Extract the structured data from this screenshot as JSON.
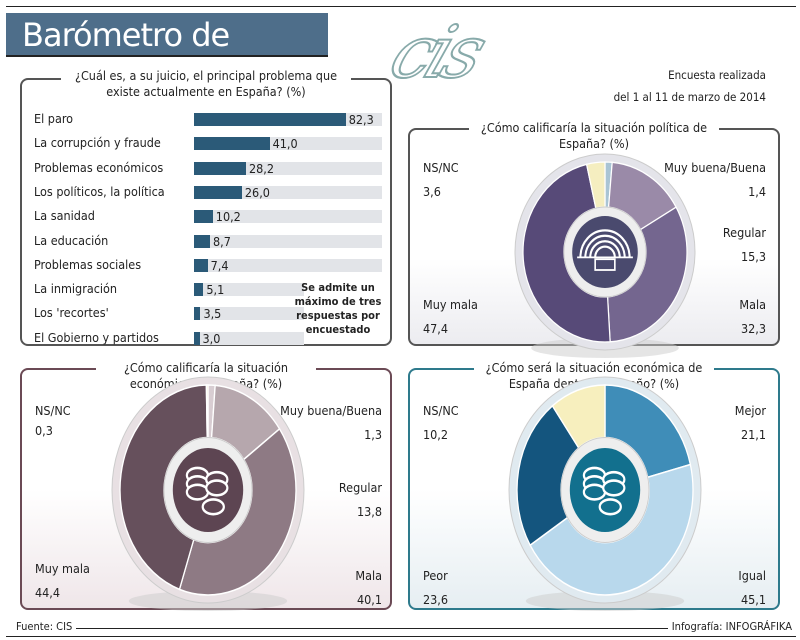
{
  "header": {
    "title": "Barómetro de marzo",
    "logo_text": "cis",
    "survey_line1": "Encuesta realizada",
    "survey_line2": "del 1 al 11 de marzo de 2014"
  },
  "footer": {
    "source": "Fuente: CIS",
    "credit": "Infografía: INFOGRÁFIKA"
  },
  "chart_data": [
    {
      "type": "bar",
      "orientation": "horizontal",
      "title": "¿Cuál es, a su juicio, el principal problema que existe actualmente en España? (%)",
      "categories": [
        "El paro",
        "La corrupción y fraude",
        "Problemas económicos",
        "Los políticos, la política",
        "La sanidad",
        "La educación",
        "Problemas sociales",
        "La inmigración",
        "Los 'recortes'",
        "El Gobierno y partidos"
      ],
      "values": [
        82.3,
        41.0,
        28.2,
        26.0,
        10.2,
        8.7,
        7.4,
        5.1,
        3.5,
        3.0
      ],
      "value_labels": [
        "82,3",
        "41,0",
        "28,2",
        "26,0",
        "10,2",
        "8,7",
        "7,4",
        "5,1",
        "3,5",
        "3,0"
      ],
      "note": "Se admite un máximo de tres respuestas por encuestado",
      "color": "#2b5a78"
    },
    {
      "type": "pie",
      "title": "¿Cómo calificaría la situación política de España? (%)",
      "categories": [
        "Muy buena/Buena",
        "Regular",
        "Mala",
        "Muy mala",
        "NS/NC"
      ],
      "values": [
        1.4,
        15.3,
        32.3,
        47.4,
        3.6
      ],
      "value_labels": [
        "1,4",
        "15,3",
        "32,3",
        "47,4",
        "3,6"
      ],
      "colors": [
        "#a9c4d4",
        "#9a8aa8",
        "#74668f",
        "#574a78",
        "#f5eec0"
      ]
    },
    {
      "type": "pie",
      "title": "¿Cómo calificaría la situación económica de España? (%)",
      "categories": [
        "Muy buena/Buena",
        "Regular",
        "Mala",
        "Muy mala",
        "NS/NC"
      ],
      "values": [
        1.3,
        13.8,
        40.1,
        44.4,
        0.3
      ],
      "value_labels": [
        "1,3",
        "13,8",
        "40,1",
        "44,4",
        "0,3"
      ],
      "colors": [
        "#d8cdd2",
        "#b6a7ad",
        "#8e7a84",
        "#66505c",
        "#f5eec0"
      ]
    },
    {
      "type": "pie",
      "title": "¿Cómo será la situación económica de España dentro de un año? (%)",
      "categories": [
        "Mejor",
        "Igual",
        "Peor",
        "NS/NC"
      ],
      "values": [
        21.1,
        45.1,
        23.6,
        10.2
      ],
      "value_labels": [
        "21,1",
        "45,1",
        "23,6",
        "10,2"
      ],
      "colors": [
        "#3f8db8",
        "#b8d8ec",
        "#14557e",
        "#f7efbe"
      ]
    }
  ]
}
